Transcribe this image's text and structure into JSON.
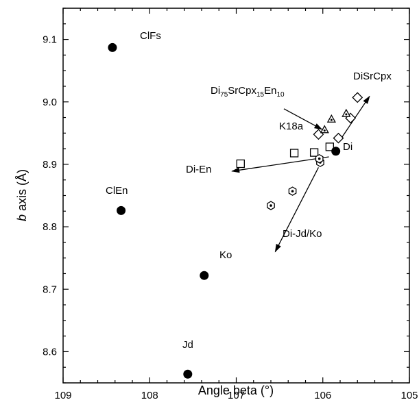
{
  "chart_data": {
    "type": "scatter",
    "title": "",
    "xlabel": "Angle beta (°)",
    "ylabel_italic": "b",
    "ylabel_rest": " axis (Å)",
    "xlim": [
      109,
      105
    ],
    "x_reversed": true,
    "ylim": [
      8.55,
      9.15
    ],
    "xticks": [
      109,
      108,
      107,
      106,
      105
    ],
    "xtick_labels": [
      "109",
      "108",
      "107",
      "106",
      "105"
    ],
    "yticks": [
      8.6,
      8.7,
      8.8,
      8.9,
      9.0,
      9.1
    ],
    "ytick_labels": [
      "8.6",
      "8.7",
      "8.8",
      "8.9",
      "9.0",
      "9.1"
    ],
    "grid": false,
    "endmembers": {
      "marker": "filled-circle",
      "points": [
        {
          "label": "ClFs",
          "x": 108.43,
          "y": 9.087
        },
        {
          "label": "ClEn",
          "x": 108.33,
          "y": 8.826
        },
        {
          "label": "Ko",
          "x": 107.37,
          "y": 8.722
        },
        {
          "label": "Jd",
          "x": 107.56,
          "y": 8.564
        },
        {
          "label": "Di",
          "x": 105.85,
          "y": 8.921
        }
      ]
    },
    "series": [
      {
        "marker": "open-square",
        "points": [
          [
            106.95,
            8.901
          ],
          [
            106.33,
            8.918
          ],
          [
            106.1,
            8.919
          ],
          [
            105.92,
            8.928
          ]
        ]
      },
      {
        "marker": "open-diamond",
        "points": [
          [
            106.05,
            8.948
          ],
          [
            105.82,
            8.942
          ],
          [
            105.68,
            8.974
          ],
          [
            105.6,
            9.007
          ]
        ]
      },
      {
        "marker": "open-triangle",
        "points": [
          [
            105.98,
            8.955
          ],
          [
            105.9,
            8.972
          ],
          [
            105.73,
            8.981
          ]
        ]
      },
      {
        "marker": "open-hexagon",
        "points": [
          [
            106.6,
            8.834
          ],
          [
            106.35,
            8.857
          ],
          [
            106.03,
            8.903
          ],
          [
            106.04,
            8.909
          ]
        ]
      }
    ],
    "vectors": [
      {
        "label": "DiSrCpx",
        "from": [
          105.8,
          8.939
        ],
        "to": [
          105.46,
          9.009
        ]
      },
      {
        "label": "Di-En",
        "from": [
          105.93,
          8.912
        ],
        "to": [
          107.05,
          8.889
        ]
      },
      {
        "label": "Di-Jd/Ko",
        "from": [
          106.05,
          8.895
        ],
        "to": [
          106.55,
          8.76
        ]
      }
    ],
    "annotations": [
      {
        "label_parts": [
          {
            "text": "Di",
            "shift": "base"
          },
          {
            "text": "75",
            "shift": "sub"
          },
          {
            "text": "SrCpx",
            "shift": "base"
          },
          {
            "text": "15",
            "shift": "sub"
          },
          {
            "text": "En",
            "shift": "base"
          },
          {
            "text": "10",
            "shift": "sub"
          }
        ],
        "arrow_from": [
          106.45,
          8.989
        ],
        "arrow_to": [
          106.01,
          8.956
        ]
      },
      {
        "label": "K18a"
      }
    ]
  }
}
